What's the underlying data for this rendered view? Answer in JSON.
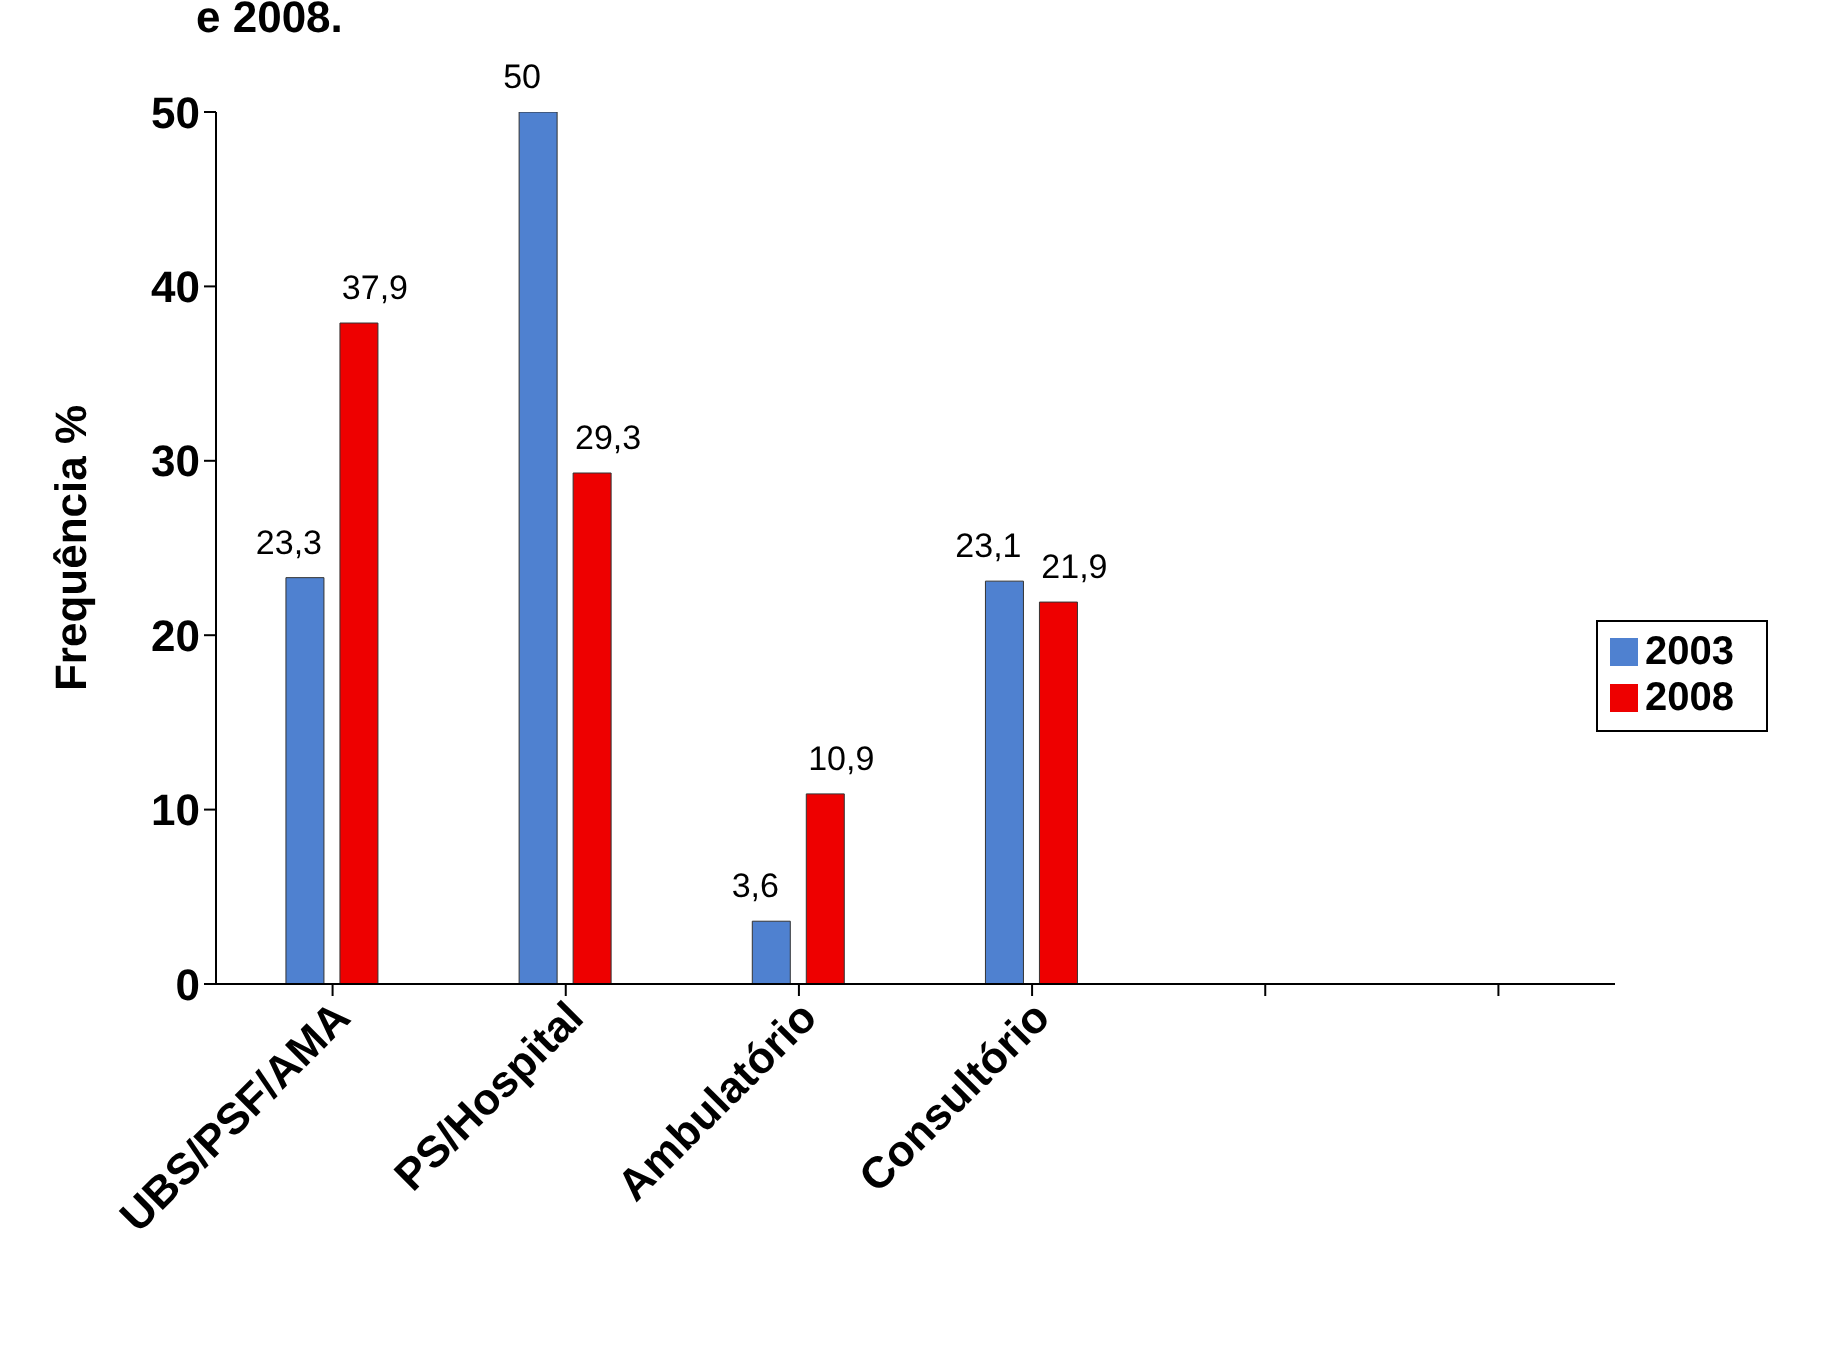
{
  "chart_data": {
    "type": "bar",
    "ylabel": "Frequência %",
    "annotations": [
      "e 2008."
    ],
    "categories": [
      "UBS/PSF/AMA",
      "PS/Hospital",
      "Ambulatório",
      "Consultório",
      null,
      null
    ],
    "series": [
      {
        "name": "2003",
        "color": "#4f81d0",
        "values": [
          23.3,
          50,
          3.6,
          23.1,
          null,
          null
        ],
        "value_labels": [
          "23,3",
          "50",
          "3,6",
          "23,1",
          null,
          null
        ]
      },
      {
        "name": "2008",
        "color": "#ee0000",
        "values": [
          37.9,
          29.3,
          10.9,
          21.9,
          null,
          null
        ],
        "value_labels": [
          "37,9",
          "29,3",
          "10,9",
          "21,9",
          null,
          null
        ]
      }
    ],
    "ylim": [
      0,
      50
    ],
    "yticks": [
      0,
      10,
      20,
      30,
      40,
      50
    ],
    "grid": false,
    "legend": "right"
  }
}
